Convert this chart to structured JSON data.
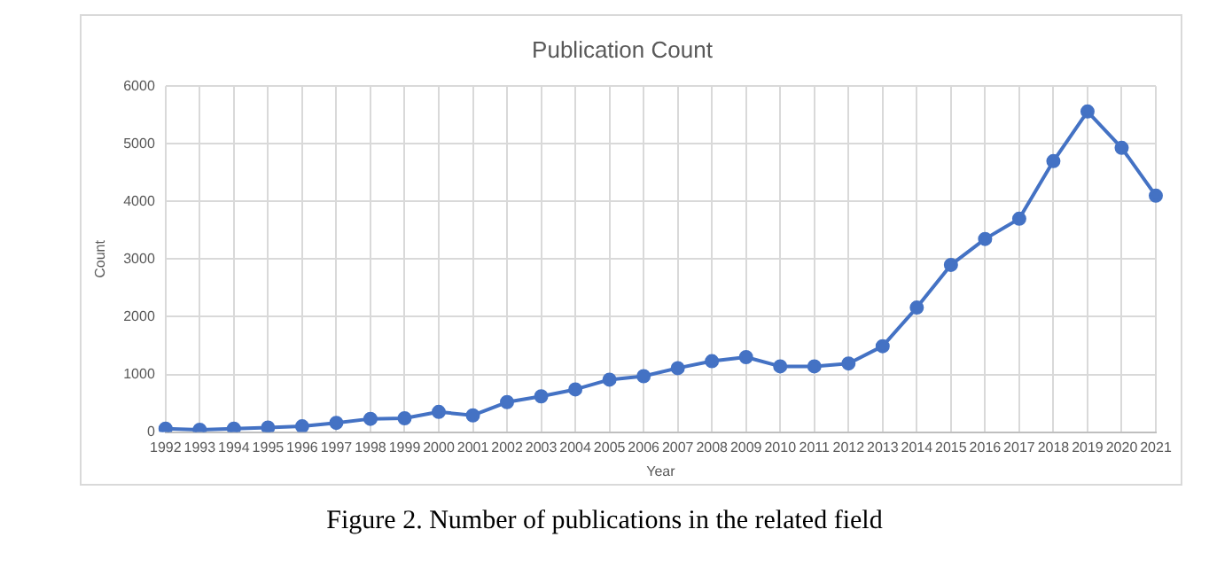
{
  "chart_data": {
    "type": "line",
    "title": "Publication Count",
    "xlabel": "Year",
    "ylabel": "Count",
    "categories": [
      "1992",
      "1993",
      "1994",
      "1995",
      "1996",
      "1997",
      "1998",
      "1999",
      "2000",
      "2001",
      "2002",
      "2003",
      "2004",
      "2005",
      "2006",
      "2007",
      "2008",
      "2009",
      "2010",
      "2011",
      "2012",
      "2013",
      "2014",
      "2015",
      "2016",
      "2017",
      "2018",
      "2019",
      "2020",
      "2021"
    ],
    "series": [
      {
        "color": "#4472c4",
        "values": [
          60,
          40,
          60,
          80,
          100,
          160,
          230,
          240,
          350,
          290,
          520,
          620,
          740,
          910,
          970,
          1110,
          1230,
          1300,
          1140,
          1140,
          1190,
          1490,
          2160,
          2900,
          3350,
          3700,
          4700,
          5560,
          4930,
          4100
        ]
      }
    ],
    "ylim": [
      0,
      6000
    ],
    "yticks": [
      0,
      1000,
      2000,
      3000,
      4000,
      5000,
      6000
    ],
    "grid": true,
    "legend": false,
    "marker": "circle",
    "line_style": "solid",
    "annotations": [
      "Figure 2. Number of publications in the related field"
    ]
  }
}
